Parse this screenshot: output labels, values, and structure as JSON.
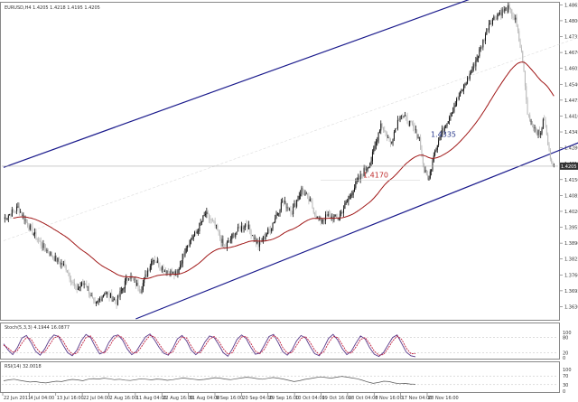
{
  "window": {
    "title": "EURUSD,H4 1.4205 1.4218 1.4195 1.4205"
  },
  "colors": {
    "background": "#ffffff",
    "grid": "#d9d9d9",
    "channel": "#1a1a8c",
    "moving_average": "#a01818",
    "bullish": "#111111",
    "bearish": "#b8b8b8",
    "annotation_upper": "#2a3a8c",
    "annotation_lower": "#c03030",
    "stoch_main": "#5a3a8a",
    "stoch_signal": "#c02040",
    "rsi_line": "#555555"
  },
  "chart_data": [
    {
      "type": "candlestick",
      "panel": "price",
      "title": "EURUSD,H4 1.4205 1.4218 1.4195 1.4205",
      "ylim": [
        1.358,
        1.487
      ],
      "y_ticks": [
        "1.4865",
        "1.4800",
        "1.4735",
        "1.4670",
        "1.4605",
        "1.4540",
        "1.4475",
        "1.4410",
        "1.4345",
        "1.4280",
        "1.4215",
        "1.4150",
        "1.4085",
        "1.4020",
        "1.3955",
        "1.3890",
        "1.3825",
        "1.3760",
        "1.3695",
        "1.3630"
      ],
      "current_price": "1.4205",
      "x_ticks": [
        "22 Jun 2011",
        "4 Jul 04:00",
        "13 Jul 16:00",
        "22 Jul 04:00",
        "2 Aug 16:00",
        "11 Aug 04:00",
        "22 Aug 16:00",
        "31 Aug 04:00",
        "9 Sep 16:00",
        "20 Sep 04:00",
        "29 Sep 16:00",
        "10 Oct 04:00",
        "19 Oct 16:00",
        "28 Oct 04:00",
        "8 Nov 16:00",
        "17 Nov 04:00",
        "28 Nov 16:00"
      ],
      "annotations": [
        {
          "text": "1.4335",
          "price": 1.4335
        },
        {
          "text": "1.4170",
          "price": 1.417
        }
      ],
      "channel": {
        "upper": [
          {
            "bar": 0,
            "price": 1.42
          },
          {
            "bar": 440,
            "price": 1.498
          }
        ],
        "lower": [
          {
            "bar": 110,
            "price": 1.358
          },
          {
            "bar": 570,
            "price": 1.448
          }
        ]
      },
      "moving_average_note": "smoothed moving average of closes",
      "anchors": [
        [
          0,
          1.399
        ],
        [
          12,
          1.4035
        ],
        [
          22,
          1.395
        ],
        [
          32,
          1.388
        ],
        [
          42,
          1.383
        ],
        [
          52,
          1.379
        ],
        [
          60,
          1.37
        ],
        [
          68,
          1.373
        ],
        [
          76,
          1.363
        ],
        [
          84,
          1.369
        ],
        [
          94,
          1.365
        ],
        [
          104,
          1.376
        ],
        [
          114,
          1.37
        ],
        [
          124,
          1.383
        ],
        [
          134,
          1.378
        ],
        [
          144,
          1.376
        ],
        [
          152,
          1.388
        ],
        [
          160,
          1.393
        ],
        [
          168,
          1.401
        ],
        [
          176,
          1.396
        ],
        [
          184,
          1.387
        ],
        [
          192,
          1.393
        ],
        [
          202,
          1.397
        ],
        [
          212,
          1.388
        ],
        [
          222,
          1.395
        ],
        [
          232,
          1.406
        ],
        [
          240,
          1.402
        ],
        [
          248,
          1.411
        ],
        [
          256,
          1.405
        ],
        [
          262,
          1.398
        ],
        [
          270,
          1.4
        ],
        [
          278,
          1.399
        ],
        [
          286,
          1.406
        ],
        [
          292,
          1.412
        ],
        [
          298,
          1.417
        ],
        [
          306,
          1.423
        ],
        [
          314,
          1.438
        ],
        [
          322,
          1.43
        ],
        [
          330,
          1.442
        ],
        [
          338,
          1.438
        ],
        [
          346,
          1.432
        ],
        [
          350,
          1.4185
        ],
        [
          354,
          1.415
        ],
        [
          358,
          1.426
        ],
        [
          366,
          1.436
        ],
        [
          374,
          1.444
        ],
        [
          382,
          1.452
        ],
        [
          390,
          1.46
        ],
        [
          398,
          1.47
        ],
        [
          404,
          1.479
        ],
        [
          412,
          1.483
        ],
        [
          420,
          1.485
        ],
        [
          426,
          1.48
        ],
        [
          432,
          1.464
        ],
        [
          436,
          1.442
        ],
        [
          440,
          1.438
        ],
        [
          446,
          1.433
        ],
        [
          450,
          1.44
        ],
        [
          454,
          1.426
        ],
        [
          458,
          1.4205
        ]
      ]
    },
    {
      "type": "line",
      "panel": "stochastic",
      "title": "Stoch(5,3,3) 4.1944 16.0877",
      "ylim": [
        0,
        100
      ],
      "y_ticks": [
        "100",
        "80",
        "20",
        "0"
      ],
      "series": [
        {
          "values": [
            55,
            30,
            12,
            40,
            78,
            88,
            60,
            25,
            10,
            35,
            70,
            90,
            84,
            50,
            20,
            8,
            30,
            68,
            92,
            80,
            45,
            15,
            22,
            60,
            85,
            90,
            70,
            35,
            12,
            25,
            55,
            82,
            94,
            70,
            40,
            18,
            10,
            38,
            75,
            88,
            66,
            30,
            12,
            28,
            62,
            86,
            80,
            52,
            20,
            6,
            35,
            72,
            90,
            76,
            42,
            14,
            18,
            50,
            84,
            92,
            60,
            24,
            10,
            30,
            66,
            88,
            78,
            44,
            16,
            8,
            40,
            76,
            92,
            70,
            36,
            12,
            26,
            58,
            86,
            74,
            40,
            14,
            5,
            20,
            50,
            80,
            90,
            56,
            22,
            8,
            4
          ]
        },
        {
          "values": [
            50,
            38,
            22,
            28,
            58,
            80,
            74,
            42,
            20,
            22,
            50,
            78,
            86,
            66,
            34,
            14,
            18,
            48,
            80,
            86,
            62,
            28,
            18,
            40,
            72,
            88,
            80,
            52,
            22,
            18,
            40,
            68,
            88,
            82,
            54,
            28,
            14,
            24,
            58,
            82,
            78,
            46,
            20,
            20,
            46,
            74,
            84,
            66,
            36,
            14,
            20,
            54,
            82,
            84,
            58,
            26,
            16,
            34,
            68,
            88,
            76,
            40,
            18,
            20,
            48,
            76,
            84,
            60,
            30,
            12,
            24,
            58,
            84,
            80,
            52,
            22,
            18,
            42,
            72,
            80,
            56,
            26,
            10,
            12,
            36,
            66,
            86,
            72,
            38,
            16,
            16
          ]
        }
      ]
    },
    {
      "type": "line",
      "panel": "rsi",
      "title": "RSI(14) 32.0018",
      "ylim": [
        0,
        100
      ],
      "y_ticks": [
        "100",
        "70",
        "30",
        "0"
      ],
      "values": [
        48,
        52,
        55,
        50,
        46,
        42,
        44,
        40,
        38,
        42,
        46,
        44,
        50,
        54,
        52,
        48,
        55,
        58,
        56,
        60,
        57,
        53,
        55,
        51,
        49,
        53,
        57,
        55,
        52,
        56,
        54,
        50,
        53,
        57,
        61,
        58,
        55,
        52,
        54,
        58,
        62,
        60,
        56,
        53,
        57,
        61,
        64,
        62,
        58,
        55,
        59,
        63,
        60,
        56,
        50,
        44,
        48,
        54,
        58,
        62,
        66,
        63,
        60,
        64,
        68,
        65,
        61,
        57,
        50,
        42,
        36,
        40,
        46,
        44,
        38,
        34,
        36,
        33,
        32
      ]
    }
  ]
}
